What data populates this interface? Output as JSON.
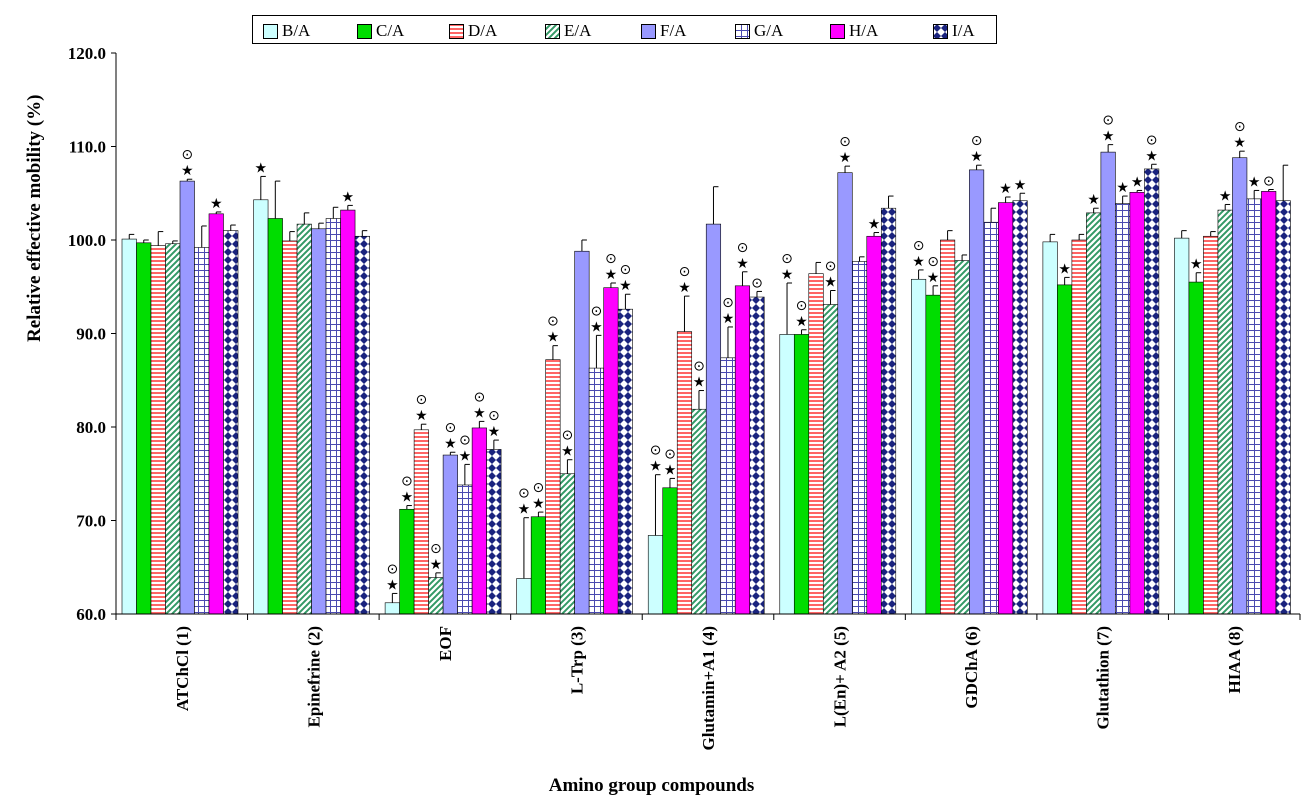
{
  "chart_data": {
    "type": "bar",
    "title": "",
    "xlabel": "Amino group compounds",
    "ylabel": "Relative effective mobility (%)",
    "ylim": [
      60.0,
      120.0
    ],
    "yticks": [
      "60.0",
      "70.0",
      "80.0",
      "90.0",
      "100.0",
      "110.0",
      "120.0"
    ],
    "legend_position": "top",
    "categories": [
      "ATChCl (1)",
      "Epinefrine (2)",
      "EOF",
      "L-Trp (3)",
      "Glutamin+A1 (4)",
      "L(En)+ A2 (5)",
      "GDChA (6)",
      "Glutathion (7)",
      "HIAA (8)"
    ],
    "series": [
      {
        "name": "B/A",
        "color": "#ccffff",
        "pattern": "plain",
        "values": [
          100.1,
          104.3,
          61.2,
          63.8,
          68.4,
          89.9,
          95.8,
          99.8,
          100.2
        ],
        "errors": [
          0.5,
          2.5,
          1.0,
          6.5,
          6.5,
          5.5,
          1.0,
          0.8,
          0.8
        ]
      },
      {
        "name": "C/A",
        "color": "#00dd00",
        "pattern": "plain",
        "values": [
          99.7,
          102.3,
          71.2,
          70.4,
          73.5,
          89.9,
          94.1,
          95.2,
          95.5
        ],
        "errors": [
          0.3,
          4.0,
          0.4,
          0.5,
          1.0,
          0.5,
          1.0,
          0.8,
          1.0
        ]
      },
      {
        "name": "D/A",
        "color": "#ff6666",
        "pattern": "hlines",
        "values": [
          99.4,
          99.9,
          79.7,
          87.2,
          90.2,
          96.4,
          100.0,
          100.0,
          100.4
        ],
        "errors": [
          1.5,
          1.0,
          0.6,
          1.5,
          3.8,
          1.2,
          1.0,
          0.6,
          0.5
        ]
      },
      {
        "name": "E/A",
        "color": "#339966",
        "pattern": "diag",
        "values": [
          99.6,
          101.7,
          63.9,
          75.0,
          81.9,
          93.1,
          97.8,
          102.9,
          103.2
        ],
        "errors": [
          0.3,
          1.2,
          0.5,
          1.5,
          2.0,
          1.5,
          0.6,
          0.5,
          0.6
        ]
      },
      {
        "name": "F/A",
        "color": "#9999ff",
        "pattern": "plain",
        "values": [
          106.3,
          101.2,
          77.0,
          98.8,
          101.7,
          107.2,
          107.5,
          109.4,
          108.8
        ],
        "errors": [
          0.2,
          0.6,
          0.3,
          1.2,
          4.0,
          0.7,
          0.5,
          0.8,
          0.7
        ]
      },
      {
        "name": "G/A",
        "color": "#4a4ab0",
        "pattern": "grid",
        "values": [
          99.2,
          102.3,
          73.8,
          86.3,
          87.4,
          97.7,
          101.9,
          103.9,
          104.4
        ],
        "errors": [
          2.3,
          1.2,
          2.2,
          3.5,
          3.3,
          0.5,
          1.5,
          0.8,
          0.9
        ]
      },
      {
        "name": "H/A",
        "color": "#ff00ff",
        "pattern": "plain",
        "values": [
          102.8,
          103.2,
          79.9,
          94.9,
          95.1,
          100.4,
          104.0,
          105.1,
          105.2
        ],
        "errors": [
          0.2,
          0.5,
          0.7,
          0.5,
          1.5,
          0.4,
          0.6,
          0.2,
          0.2
        ]
      },
      {
        "name": "I/A",
        "color": "#1a237e",
        "pattern": "diamond",
        "values": [
          101.0,
          100.4,
          77.6,
          92.6,
          93.9,
          103.4,
          104.2,
          107.6,
          104.2
        ],
        "errors": [
          0.6,
          0.6,
          1.0,
          1.6,
          0.6,
          1.3,
          0.8,
          0.5,
          3.8
        ]
      }
    ],
    "annotations": [
      {
        "category": 0,
        "series": 4,
        "marks": "★⊙"
      },
      {
        "category": 0,
        "series": 6,
        "marks": "★"
      },
      {
        "category": 1,
        "series": 0,
        "marks": "★"
      },
      {
        "category": 1,
        "series": 6,
        "marks": "★"
      },
      {
        "category": 2,
        "series": 0,
        "marks": "★⊙"
      },
      {
        "category": 2,
        "series": 1,
        "marks": "★⊙"
      },
      {
        "category": 2,
        "series": 2,
        "marks": "★⊙"
      },
      {
        "category": 2,
        "series": 3,
        "marks": "★⊙"
      },
      {
        "category": 2,
        "series": 4,
        "marks": "★⊙"
      },
      {
        "category": 2,
        "series": 5,
        "marks": "★⊙"
      },
      {
        "category": 2,
        "series": 6,
        "marks": "★⊙"
      },
      {
        "category": 2,
        "series": 7,
        "marks": "★⊙"
      },
      {
        "category": 3,
        "series": 0,
        "marks": "★⊙"
      },
      {
        "category": 3,
        "series": 1,
        "marks": "★⊙"
      },
      {
        "category": 3,
        "series": 2,
        "marks": "★⊙"
      },
      {
        "category": 3,
        "series": 3,
        "marks": "★⊙"
      },
      {
        "category": 3,
        "series": 5,
        "marks": "★⊙"
      },
      {
        "category": 3,
        "series": 6,
        "marks": "★⊙"
      },
      {
        "category": 3,
        "series": 7,
        "marks": "★⊙"
      },
      {
        "category": 4,
        "series": 0,
        "marks": "★⊙"
      },
      {
        "category": 4,
        "series": 1,
        "marks": "★⊙"
      },
      {
        "category": 4,
        "series": 2,
        "marks": "★⊙"
      },
      {
        "category": 4,
        "series": 3,
        "marks": "★⊙"
      },
      {
        "category": 4,
        "series": 5,
        "marks": "★⊙"
      },
      {
        "category": 4,
        "series": 6,
        "marks": "★⊙"
      },
      {
        "category": 4,
        "series": 7,
        "marks": "⊙"
      },
      {
        "category": 5,
        "series": 0,
        "marks": "★⊙"
      },
      {
        "category": 5,
        "series": 1,
        "marks": "★⊙"
      },
      {
        "category": 5,
        "series": 3,
        "marks": "★⊙"
      },
      {
        "category": 5,
        "series": 4,
        "marks": "★⊙"
      },
      {
        "category": 5,
        "series": 6,
        "marks": "★"
      },
      {
        "category": 6,
        "series": 0,
        "marks": "★⊙"
      },
      {
        "category": 6,
        "series": 1,
        "marks": "★⊙"
      },
      {
        "category": 6,
        "series": 4,
        "marks": "★⊙"
      },
      {
        "category": 6,
        "series": 6,
        "marks": "★"
      },
      {
        "category": 6,
        "series": 7,
        "marks": "★"
      },
      {
        "category": 7,
        "series": 1,
        "marks": "★"
      },
      {
        "category": 7,
        "series": 3,
        "marks": "★"
      },
      {
        "category": 7,
        "series": 4,
        "marks": "★⊙"
      },
      {
        "category": 7,
        "series": 5,
        "marks": "★"
      },
      {
        "category": 7,
        "series": 6,
        "marks": "★"
      },
      {
        "category": 7,
        "series": 7,
        "marks": "★⊙"
      },
      {
        "category": 8,
        "series": 1,
        "marks": "★"
      },
      {
        "category": 8,
        "series": 3,
        "marks": "★"
      },
      {
        "category": 8,
        "series": 4,
        "marks": "★⊙"
      },
      {
        "category": 8,
        "series": 5,
        "marks": "★"
      },
      {
        "category": 8,
        "series": 6,
        "marks": "⊙"
      }
    ]
  }
}
